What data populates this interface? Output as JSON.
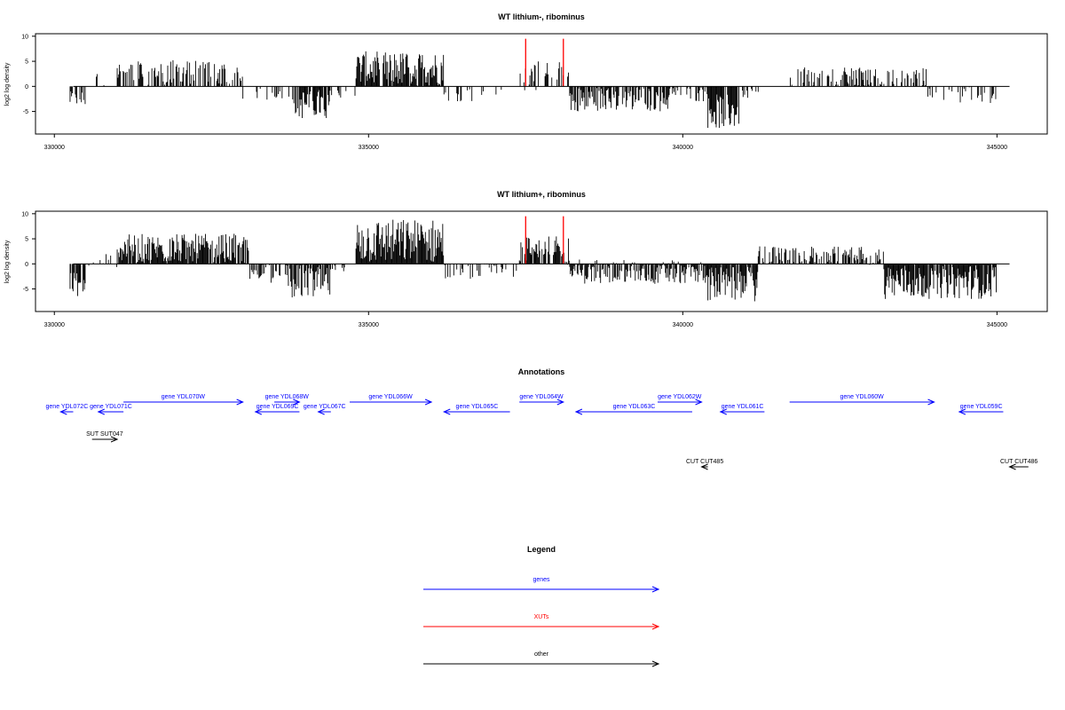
{
  "chart_data": [
    {
      "type": "bar",
      "title": "WT lithium-, ribominus",
      "ylabel": "log2 log density",
      "xlim": [
        329700,
        345800
      ],
      "ylim": [
        -9.5,
        10.5
      ],
      "xticks": [
        330000,
        335000,
        340000,
        345000
      ],
      "xtick_labels": [
        "330000",
        "335000",
        "340000",
        "345000"
      ],
      "yticks": [
        -5,
        0,
        5,
        10
      ],
      "ytick_labels": [
        "-5",
        "0",
        "5",
        "10"
      ],
      "baseline_span": [
        330300,
        345200
      ],
      "series": [
        {
          "color": "#000000",
          "segments": [
            {
              "start": 330250,
              "end": 330500,
              "mean": -2.5,
              "amp": 1.5,
              "density": 0.7
            },
            {
              "start": 330500,
              "end": 330800,
              "mean": 1.5,
              "amp": 2.5,
              "density": 0.12
            },
            {
              "start": 331000,
              "end": 333000,
              "mean": 2.8,
              "amp": 2.5,
              "density": 0.55
            },
            {
              "start": 333000,
              "end": 333800,
              "mean": -1.5,
              "amp": 1.2,
              "density": 0.12
            },
            {
              "start": 333800,
              "end": 334400,
              "mean": -3.5,
              "amp": 3.0,
              "density": 0.85
            },
            {
              "start": 334400,
              "end": 334800,
              "mean": -1.5,
              "amp": 1.0,
              "density": 0.1
            },
            {
              "start": 334800,
              "end": 336200,
              "mean": 3.5,
              "amp": 3.5,
              "density": 0.95
            },
            {
              "start": 336200,
              "end": 337200,
              "mean": -1.5,
              "amp": 1.5,
              "density": 0.15
            },
            {
              "start": 337400,
              "end": 338200,
              "mean": 2.0,
              "amp": 3.0,
              "density": 0.35
            },
            {
              "start": 338200,
              "end": 339800,
              "mean": -2.5,
              "amp": 2.5,
              "density": 0.7
            },
            {
              "start": 339800,
              "end": 340400,
              "mean": -1.5,
              "amp": 1.5,
              "density": 0.3
            },
            {
              "start": 340400,
              "end": 340900,
              "mean": -5.0,
              "amp": 3.5,
              "density": 0.95
            },
            {
              "start": 340900,
              "end": 341300,
              "mean": -1.5,
              "amp": 1.0,
              "density": 0.2
            },
            {
              "start": 341700,
              "end": 343900,
              "mean": 1.8,
              "amp": 2.0,
              "density": 0.45
            },
            {
              "start": 343900,
              "end": 345000,
              "mean": -1.8,
              "amp": 1.8,
              "density": 0.25
            }
          ]
        }
      ],
      "highlights": {
        "color": "#ff0000",
        "x": [
          337500,
          338100
        ],
        "y_top": 9.5
      }
    },
    {
      "type": "bar",
      "title": "WT lithium+, ribominus",
      "ylabel": "log2 log density",
      "xlim": [
        329700,
        345800
      ],
      "ylim": [
        -9.5,
        10.5
      ],
      "xticks": [
        330000,
        335000,
        340000,
        345000
      ],
      "xtick_labels": [
        "330000",
        "335000",
        "340000",
        "345000"
      ],
      "yticks": [
        -5,
        0,
        5,
        10
      ],
      "ytick_labels": [
        "-5",
        "0",
        "5",
        "10"
      ],
      "baseline_span": [
        330300,
        345200
      ],
      "series": [
        {
          "color": "#000000",
          "segments": [
            {
              "start": 330250,
              "end": 330500,
              "mean": -4.0,
              "amp": 2.5,
              "density": 0.9
            },
            {
              "start": 330500,
              "end": 331000,
              "mean": 0.8,
              "amp": 1.5,
              "density": 0.3
            },
            {
              "start": 331000,
              "end": 333100,
              "mean": 3.0,
              "amp": 3.0,
              "density": 0.9
            },
            {
              "start": 333100,
              "end": 333700,
              "mean": -1.8,
              "amp": 2.0,
              "density": 0.6
            },
            {
              "start": 333700,
              "end": 334400,
              "mean": -3.5,
              "amp": 3.5,
              "density": 0.9
            },
            {
              "start": 334400,
              "end": 334800,
              "mean": -1.0,
              "amp": 1.0,
              "density": 0.3
            },
            {
              "start": 334800,
              "end": 336200,
              "mean": 4.5,
              "amp": 4.5,
              "density": 1.0
            },
            {
              "start": 336200,
              "end": 337400,
              "mean": -1.5,
              "amp": 1.5,
              "density": 0.4
            },
            {
              "start": 337400,
              "end": 338200,
              "mean": 2.5,
              "amp": 3.0,
              "density": 0.7
            },
            {
              "start": 338200,
              "end": 340400,
              "mean": -1.5,
              "amp": 2.5,
              "density": 0.8
            },
            {
              "start": 340400,
              "end": 341200,
              "mean": -4.0,
              "amp": 3.5,
              "density": 0.95
            },
            {
              "start": 341200,
              "end": 343200,
              "mean": 1.5,
              "amp": 2.0,
              "density": 0.6
            },
            {
              "start": 343200,
              "end": 345000,
              "mean": -3.5,
              "amp": 3.5,
              "density": 0.95
            }
          ]
        }
      ],
      "highlights": {
        "color": "#ff0000",
        "x": [
          337500,
          338100
        ],
        "y_top": 9.5
      }
    }
  ],
  "annotations": {
    "title": "Annotations",
    "items": [
      {
        "label": "gene YDL072C",
        "start": 330100,
        "end": 330300,
        "row": 2,
        "dir": "left",
        "color": "#0000ff"
      },
      {
        "label": "gene YDL071C",
        "start": 330700,
        "end": 331100,
        "row": 2,
        "dir": "left",
        "color": "#0000ff"
      },
      {
        "label": "gene YDL070W",
        "start": 331100,
        "end": 333000,
        "row": 1,
        "dir": "right",
        "color": "#0000ff"
      },
      {
        "label": "gene YDL068W",
        "start": 333500,
        "end": 333900,
        "row": 1,
        "dir": "right",
        "color": "#0000ff"
      },
      {
        "label": "gene YDL069C",
        "start": 333200,
        "end": 333900,
        "row": 2,
        "dir": "left",
        "color": "#0000ff"
      },
      {
        "label": "gene YDL067C",
        "start": 334200,
        "end": 334400,
        "row": 2,
        "dir": "left",
        "color": "#0000ff"
      },
      {
        "label": "gene YDL066W",
        "start": 334700,
        "end": 336000,
        "row": 1,
        "dir": "right",
        "color": "#0000ff"
      },
      {
        "label": "gene YDL065C",
        "start": 336200,
        "end": 337250,
        "row": 2,
        "dir": "left",
        "color": "#0000ff"
      },
      {
        "label": "gene YDL064W",
        "start": 337400,
        "end": 338100,
        "row": 1,
        "dir": "right",
        "color": "#0000ff"
      },
      {
        "label": "gene YDL063C",
        "start": 338300,
        "end": 340150,
        "row": 2,
        "dir": "left",
        "color": "#0000ff"
      },
      {
        "label": "gene YDL062W",
        "start": 339600,
        "end": 340300,
        "row": 1,
        "dir": "right",
        "color": "#0000ff"
      },
      {
        "label": "gene YDL061C",
        "start": 340600,
        "end": 341300,
        "row": 2,
        "dir": "left",
        "color": "#0000ff"
      },
      {
        "label": "gene YDL060W",
        "start": 341700,
        "end": 344000,
        "row": 1,
        "dir": "right",
        "color": "#0000ff"
      },
      {
        "label": "gene YDL059C",
        "start": 344400,
        "end": 345100,
        "row": 2,
        "dir": "left",
        "color": "#0000ff"
      },
      {
        "label": "SUT SUT047",
        "start": 330600,
        "end": 331000,
        "row": 3,
        "dir": "right",
        "color": "#000000"
      },
      {
        "label": "CUT CUT485",
        "start": 340300,
        "end": 340400,
        "row": 4,
        "dir": "left",
        "color": "#000000"
      },
      {
        "label": "CUT CUT486",
        "start": 345200,
        "end": 345500,
        "row": 4,
        "dir": "left",
        "color": "#000000"
      }
    ]
  },
  "legend": {
    "title": "Legend",
    "items": [
      {
        "label": "genes",
        "color": "#0000ff"
      },
      {
        "label": "XUTs",
        "color": "#ff0000"
      },
      {
        "label": "other",
        "color": "#000000"
      }
    ]
  }
}
